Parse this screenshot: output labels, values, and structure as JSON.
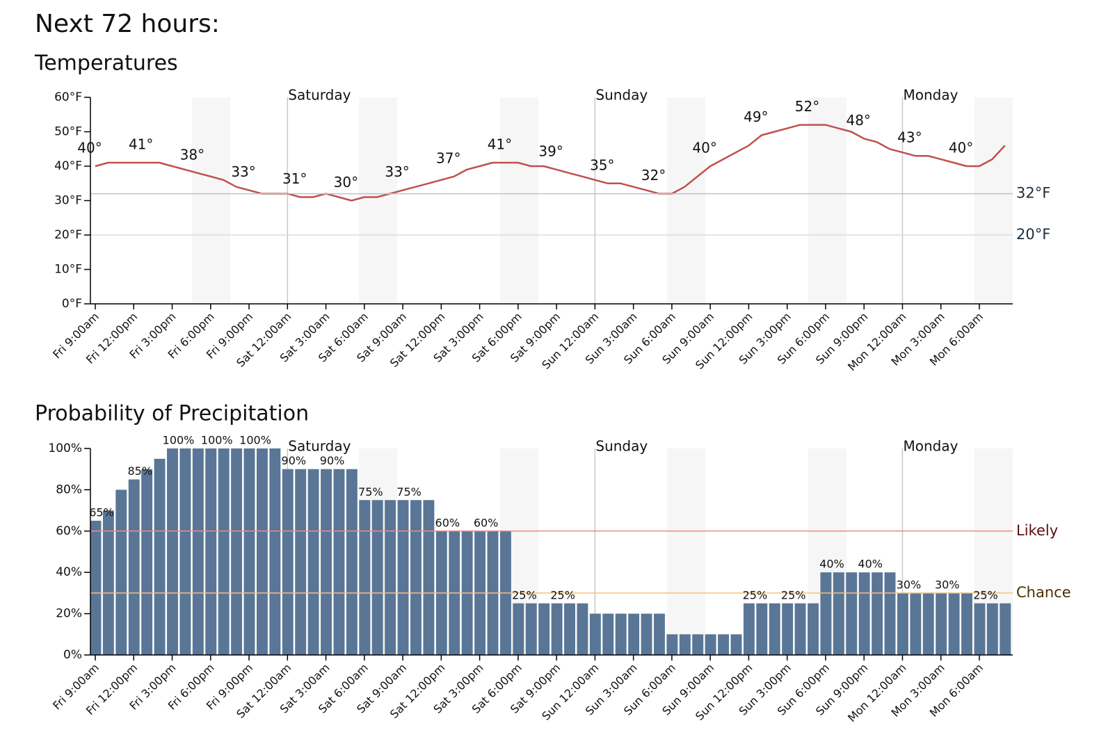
{
  "page": {
    "title": "Next 72 hours:"
  },
  "chart_data": [
    {
      "type": "line",
      "title": "Temperatures",
      "color": "#c0504d",
      "categories": [
        "Fri 9:00am",
        null,
        null,
        "Fri 12:00pm",
        null,
        null,
        "Fri 3:00pm",
        null,
        null,
        "Fri 6:00pm",
        null,
        null,
        "Fri 9:00pm",
        null,
        null,
        "Sat 12:00am",
        null,
        null,
        "Sat 3:00am",
        null,
        null,
        "Sat 6:00am",
        null,
        null,
        "Sat 9:00am",
        null,
        null,
        "Sat 12:00pm",
        null,
        null,
        "Sat 3:00pm",
        null,
        null,
        "Sat 6:00pm",
        null,
        null,
        "Sat 9:00pm",
        null,
        null,
        "Sun 12:00am",
        null,
        null,
        "Sun 3:00am",
        null,
        null,
        "Sun 6:00am",
        null,
        null,
        "Sun 9:00am",
        null,
        null,
        "Sun 12:00pm",
        null,
        null,
        "Sun 3:00pm",
        null,
        null,
        "Sun 6:00pm",
        null,
        null,
        "Sun 9:00pm",
        null,
        null,
        "Mon 12:00am",
        null,
        null,
        "Mon 3:00am",
        null,
        null,
        "Mon 6:00am",
        null,
        null
      ],
      "values": [
        40,
        41,
        41,
        41,
        41,
        41,
        40,
        39,
        38,
        37,
        36,
        34,
        33,
        32,
        32,
        32,
        31,
        31,
        32,
        31,
        30,
        31,
        31,
        32,
        33,
        34,
        35,
        36,
        37,
        39,
        40,
        41,
        41,
        41,
        40,
        40,
        39,
        38,
        37,
        36,
        35,
        35,
        34,
        33,
        32,
        32,
        34,
        37,
        40,
        42,
        44,
        46,
        49,
        50,
        51,
        52,
        52,
        52,
        51,
        50,
        48,
        47,
        45,
        44,
        43,
        43,
        42,
        41,
        40,
        40,
        42,
        46
      ],
      "value_labels": [
        "40°",
        null,
        null,
        null,
        "41°",
        null,
        null,
        null,
        "38°",
        null,
        null,
        null,
        "33°",
        null,
        null,
        null,
        "31°",
        null,
        null,
        null,
        "30°",
        null,
        null,
        null,
        "33°",
        null,
        null,
        null,
        "37°",
        null,
        null,
        null,
        "41°",
        null,
        null,
        null,
        "39°",
        null,
        null,
        null,
        "35°",
        null,
        null,
        null,
        "32°",
        null,
        null,
        null,
        "40°",
        null,
        null,
        null,
        "49°",
        null,
        null,
        null,
        "52°",
        null,
        null,
        null,
        "48°",
        null,
        null,
        null,
        "43°",
        null,
        null,
        null,
        "40°",
        null,
        null,
        null
      ],
      "ylim": [
        0,
        60
      ],
      "yticks": [
        {
          "value": 0,
          "label": "0°F"
        },
        {
          "value": 10,
          "label": "10°F"
        },
        {
          "value": 20,
          "label": "20°F"
        },
        {
          "value": 30,
          "label": "30°F"
        },
        {
          "value": 40,
          "label": "40°F"
        },
        {
          "value": 50,
          "label": "50°F"
        },
        {
          "value": 60,
          "label": "60°F"
        }
      ],
      "thresholds": [
        {
          "value": 32,
          "label": "32°F",
          "color": "#b4c4d2",
          "text_color": "#1c2e3e"
        },
        {
          "value": 20,
          "label": "20°F",
          "color": "#cfe0ec",
          "text_color": "#1c2e3e"
        }
      ],
      "days": [
        {
          "label": "Saturday",
          "category": "Sat 12:00am"
        },
        {
          "label": "Sunday",
          "category": "Sun 12:00am"
        },
        {
          "label": "Monday",
          "category": "Mon 12:00am"
        }
      ]
    },
    {
      "type": "bar",
      "title": "Probability of Precipitation",
      "color": "#5a7696",
      "categories": [
        "Fri 9:00am",
        null,
        null,
        "Fri 12:00pm",
        null,
        null,
        "Fri 3:00pm",
        null,
        null,
        "Fri 6:00pm",
        null,
        null,
        "Fri 9:00pm",
        null,
        null,
        "Sat 12:00am",
        null,
        null,
        "Sat 3:00am",
        null,
        null,
        "Sat 6:00am",
        null,
        null,
        "Sat 9:00am",
        null,
        null,
        "Sat 12:00pm",
        null,
        null,
        "Sat 3:00pm",
        null,
        null,
        "Sat 6:00pm",
        null,
        null,
        "Sat 9:00pm",
        null,
        null,
        "Sun 12:00am",
        null,
        null,
        "Sun 3:00am",
        null,
        null,
        "Sun 6:00am",
        null,
        null,
        "Sun 9:00am",
        null,
        null,
        "Sun 12:00pm",
        null,
        null,
        "Sun 3:00pm",
        null,
        null,
        "Sun 6:00pm",
        null,
        null,
        "Sun 9:00pm",
        null,
        null,
        "Mon 12:00am",
        null,
        null,
        "Mon 3:00am",
        null,
        null,
        "Mon 6:00am",
        null,
        null
      ],
      "values": [
        65,
        70,
        80,
        85,
        90,
        95,
        100,
        100,
        100,
        100,
        100,
        100,
        100,
        100,
        100,
        90,
        90,
        90,
        90,
        90,
        90,
        75,
        75,
        75,
        75,
        75,
        75,
        60,
        60,
        60,
        60,
        60,
        60,
        25,
        25,
        25,
        25,
        25,
        25,
        20,
        20,
        20,
        20,
        20,
        20,
        10,
        10,
        10,
        10,
        10,
        10,
        25,
        25,
        25,
        25,
        25,
        25,
        40,
        40,
        40,
        40,
        40,
        40,
        30,
        30,
        30,
        30,
        30,
        30,
        25,
        25,
        25
      ],
      "value_labels": [
        "65%",
        null,
        null,
        "85%",
        null,
        null,
        "100%",
        null,
        null,
        "100%",
        null,
        null,
        "100%",
        null,
        null,
        "90%",
        null,
        null,
        "90%",
        null,
        null,
        "75%",
        null,
        null,
        "75%",
        null,
        null,
        "60%",
        null,
        null,
        "60%",
        null,
        null,
        "25%",
        null,
        null,
        "25%",
        null,
        null,
        null,
        null,
        null,
        null,
        null,
        null,
        null,
        null,
        null,
        null,
        null,
        null,
        "25%",
        null,
        null,
        "25%",
        null,
        null,
        "40%",
        null,
        null,
        "40%",
        null,
        null,
        "30%",
        null,
        null,
        "30%",
        null,
        null,
        "25%",
        null,
        null
      ],
      "ylim": [
        0,
        100
      ],
      "yticks": [
        {
          "value": 0,
          "label": "0%"
        },
        {
          "value": 20,
          "label": "20%"
        },
        {
          "value": 40,
          "label": "40%"
        },
        {
          "value": 60,
          "label": "60%"
        },
        {
          "value": 80,
          "label": "80%"
        },
        {
          "value": 100,
          "label": "100%"
        }
      ],
      "thresholds": [
        {
          "value": 60,
          "label": "Likely",
          "color": "#f08a8a",
          "text_color": "#5a1010"
        },
        {
          "value": 30,
          "label": "Chance",
          "color": "#f5c27a",
          "text_color": "#4a3000"
        }
      ],
      "days": [
        {
          "label": "Saturday",
          "category": "Sat 12:00am"
        },
        {
          "label": "Sunday",
          "category": "Sun 12:00am"
        },
        {
          "label": "Monday",
          "category": "Mon 12:00am"
        }
      ]
    }
  ]
}
